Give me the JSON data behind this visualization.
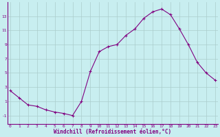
{
  "x": [
    0,
    1,
    2,
    3,
    4,
    5,
    6,
    7,
    8,
    9,
    10,
    11,
    12,
    13,
    14,
    15,
    16,
    17,
    18,
    19,
    20,
    21,
    22,
    23
  ],
  "y": [
    2.5,
    1.5,
    0.5,
    0.3,
    -0.2,
    -0.5,
    -0.7,
    -1.0,
    1.0,
    5.2,
    8.0,
    8.7,
    9.0,
    10.3,
    11.2,
    12.7,
    13.6,
    14.0,
    13.2,
    11.2,
    9.0,
    6.5,
    5.0,
    4.0
  ],
  "line_color": "#800080",
  "marker": "+",
  "marker_size": 3,
  "xlabel": "Windchill (Refroidissement éolien,°C)",
  "background_color": "#c8eef0",
  "grid_color": "#aacccc",
  "yticks": [
    -1,
    1,
    3,
    5,
    7,
    9,
    11,
    13
  ],
  "xticks": [
    0,
    1,
    2,
    3,
    4,
    5,
    6,
    7,
    8,
    9,
    10,
    11,
    12,
    13,
    14,
    15,
    16,
    17,
    18,
    19,
    20,
    21,
    22,
    23
  ],
  "ylim": [
    -2.2,
    15.0
  ],
  "xlim": [
    -0.3,
    23.3
  ],
  "xlabel_color": "#800080",
  "tick_color": "#800080",
  "tick_fontsize": 4.5,
  "xlabel_fontsize": 5.5
}
